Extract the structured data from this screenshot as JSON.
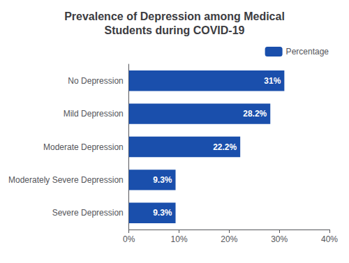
{
  "chart_data": {
    "type": "bar",
    "orientation": "horizontal",
    "title": "Prevalence of Depression among Medical\nStudents during COVID-19",
    "categories": [
      "Severe Depression",
      "Moderately Severe Depression",
      "Moderate Depression",
      "Mild Depression",
      "No Depression"
    ],
    "series": [
      {
        "name": "Percentage",
        "color": "#1a4fac",
        "values": [
          9.3,
          9.3,
          22.2,
          28.2,
          31.0
        ],
        "value_labels": [
          "9.3%",
          "9.3%",
          "22.2%",
          "28.2%",
          "31%"
        ]
      }
    ],
    "xlim": [
      0,
      40
    ],
    "xticks": [
      {
        "value": 0,
        "label": "0%"
      },
      {
        "value": 10,
        "label": "10%"
      },
      {
        "value": 20,
        "label": "20%"
      },
      {
        "value": 30,
        "label": "30%"
      },
      {
        "value": 40,
        "label": "40%"
      }
    ],
    "grid": false,
    "legend": "top-right",
    "data_labels": true
  }
}
